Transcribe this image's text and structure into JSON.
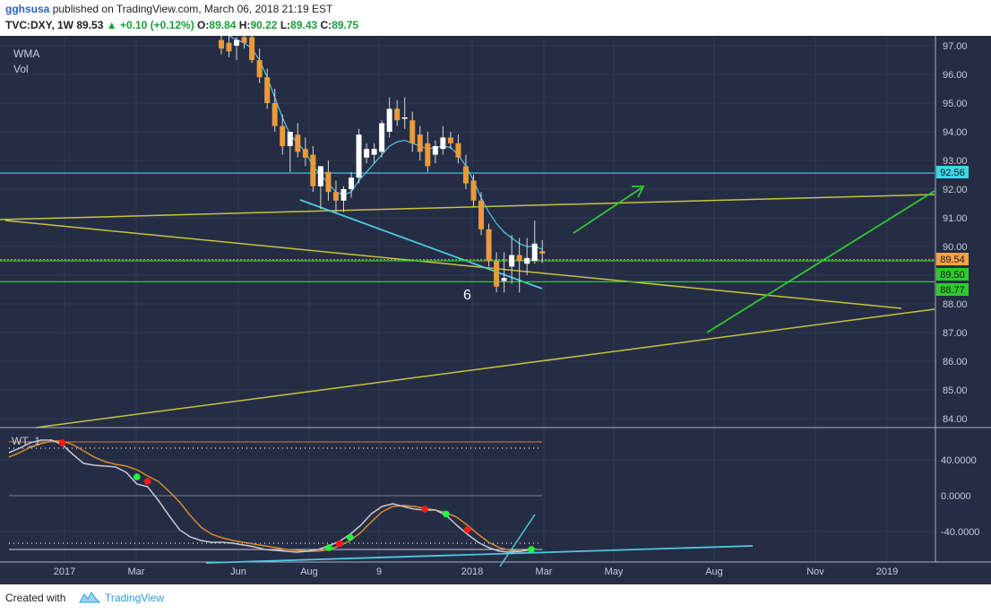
{
  "header": {
    "author": "gghsusa",
    "published": "published on TradingView.com, March 06, 2018 21:19 EST",
    "symbol": "TVC:DXY, 1W",
    "last": "89.53",
    "change": "+0.10 (+0.12%)",
    "open_label": "O:",
    "open": "89.84",
    "high_label": "H:",
    "high": "90.22",
    "low_label": "L:",
    "low": "89.43",
    "close_label": "C:",
    "close": "89.75"
  },
  "footer": {
    "created_with": "Created with",
    "brand": "TradingView"
  },
  "colors": {
    "background": "#252d45",
    "bull": "#ffffff",
    "bear": "#e99a3a",
    "wma": "#4ec9e0",
    "yellow_line": "#c8c23a",
    "green_line": "#2ec92e",
    "cyan_level": "#3ad8e8",
    "wt1": "#c8c8d2",
    "wt2": "#d78a2a"
  },
  "chart_data": [
    {
      "type": "candlestick",
      "symbol": "TVC:DXY",
      "interval": "1W",
      "legend": [
        "WMA",
        "Vol"
      ],
      "ylim": [
        83.6,
        97.3
      ],
      "y_ticks": [
        "97.00",
        "96.00",
        "95.00",
        "94.00",
        "93.00",
        "92.00",
        "91.00",
        "90.00",
        "89.00",
        "88.00",
        "87.00",
        "86.00",
        "85.00",
        "84.00"
      ],
      "x_ticks": [
        "2017",
        "Mar",
        "Jun",
        "Aug",
        "9",
        "2018",
        "Mar",
        "May",
        "Aug",
        "Nov",
        "2019"
      ],
      "candles": [
        {
          "o": 97.2,
          "h": 97.6,
          "l": 96.7,
          "c": 96.9
        },
        {
          "o": 97.1,
          "h": 97.5,
          "l": 96.6,
          "c": 96.8
        },
        {
          "o": 97.0,
          "h": 97.3,
          "l": 96.5,
          "c": 97.2
        },
        {
          "o": 97.3,
          "h": 97.7,
          "l": 96.9,
          "c": 97.1
        },
        {
          "o": 97.3,
          "h": 97.5,
          "l": 96.4,
          "c": 96.5
        },
        {
          "o": 96.5,
          "h": 96.9,
          "l": 95.7,
          "c": 95.9
        },
        {
          "o": 95.9,
          "h": 96.2,
          "l": 94.8,
          "c": 95.0
        },
        {
          "o": 95.0,
          "h": 95.5,
          "l": 94.0,
          "c": 94.2
        },
        {
          "o": 94.2,
          "h": 94.6,
          "l": 93.2,
          "c": 93.5
        },
        {
          "o": 93.5,
          "h": 93.9,
          "l": 92.6,
          "c": 94.0
        },
        {
          "o": 93.9,
          "h": 94.3,
          "l": 93.1,
          "c": 93.3
        },
        {
          "o": 93.4,
          "h": 93.8,
          "l": 92.8,
          "c": 93.1
        },
        {
          "o": 93.2,
          "h": 93.5,
          "l": 91.9,
          "c": 92.1
        },
        {
          "o": 92.1,
          "h": 92.8,
          "l": 91.3,
          "c": 92.8
        },
        {
          "o": 92.6,
          "h": 93.0,
          "l": 91.6,
          "c": 91.9
        },
        {
          "o": 91.9,
          "h": 92.3,
          "l": 91.2,
          "c": 91.6
        },
        {
          "o": 91.6,
          "h": 92.1,
          "l": 91.2,
          "c": 92.0
        },
        {
          "o": 92.0,
          "h": 92.6,
          "l": 91.7,
          "c": 92.4
        },
        {
          "o": 92.4,
          "h": 94.1,
          "l": 92.2,
          "c": 93.9
        },
        {
          "o": 93.1,
          "h": 93.6,
          "l": 92.9,
          "c": 93.4
        },
        {
          "o": 93.2,
          "h": 93.6,
          "l": 92.9,
          "c": 93.4
        },
        {
          "o": 93.3,
          "h": 94.4,
          "l": 93.1,
          "c": 94.3
        },
        {
          "o": 94.0,
          "h": 95.2,
          "l": 93.8,
          "c": 94.8
        },
        {
          "o": 94.8,
          "h": 95.1,
          "l": 94.2,
          "c": 94.4
        },
        {
          "o": 94.5,
          "h": 95.2,
          "l": 94.1,
          "c": 94.5
        },
        {
          "o": 94.4,
          "h": 94.7,
          "l": 93.3,
          "c": 93.6
        },
        {
          "o": 93.9,
          "h": 94.2,
          "l": 93.0,
          "c": 93.3
        },
        {
          "o": 93.6,
          "h": 94.0,
          "l": 92.6,
          "c": 92.8
        },
        {
          "o": 93.2,
          "h": 93.7,
          "l": 92.9,
          "c": 93.5
        },
        {
          "o": 93.4,
          "h": 94.2,
          "l": 93.2,
          "c": 93.8
        },
        {
          "o": 93.8,
          "h": 94.0,
          "l": 93.4,
          "c": 93.6
        },
        {
          "o": 93.6,
          "h": 93.9,
          "l": 92.9,
          "c": 93.1
        },
        {
          "o": 92.8,
          "h": 93.2,
          "l": 92.0,
          "c": 92.2
        },
        {
          "o": 92.3,
          "h": 92.5,
          "l": 91.4,
          "c": 91.6
        },
        {
          "o": 91.6,
          "h": 91.9,
          "l": 90.4,
          "c": 90.6
        },
        {
          "o": 90.6,
          "h": 90.8,
          "l": 89.3,
          "c": 89.5
        },
        {
          "o": 89.5,
          "h": 89.8,
          "l": 88.4,
          "c": 88.6
        },
        {
          "o": 88.8,
          "h": 89.8,
          "l": 88.4,
          "c": 88.9
        },
        {
          "o": 89.3,
          "h": 90.4,
          "l": 88.7,
          "c": 89.7
        },
        {
          "o": 89.7,
          "h": 90.3,
          "l": 88.4,
          "c": 89.5
        },
        {
          "o": 89.4,
          "h": 90.3,
          "l": 89.0,
          "c": 89.6
        },
        {
          "o": 89.5,
          "h": 90.9,
          "l": 89.4,
          "c": 90.1
        },
        {
          "o": 89.84,
          "h": 90.22,
          "l": 89.43,
          "c": 89.75
        }
      ],
      "wma": [
        97.5,
        97.35,
        97.2,
        97.1,
        96.9,
        96.5,
        95.9,
        95.2,
        94.5,
        93.9,
        93.6,
        93.3,
        92.8,
        92.5,
        92.2,
        91.9,
        91.8,
        91.9,
        92.3,
        92.6,
        92.9,
        93.2,
        93.5,
        93.65,
        93.7,
        93.6,
        93.5,
        93.4,
        93.45,
        93.5,
        93.45,
        93.2,
        92.8,
        92.3,
        91.7,
        91.2,
        90.8,
        90.5,
        90.3,
        90.1,
        90.0,
        90.0,
        89.9
      ],
      "levels": [
        {
          "label": "92.56",
          "value": 92.56,
          "style": "cyan"
        },
        {
          "label": "89.54",
          "value": 89.54,
          "style": "orange"
        },
        {
          "label": "89.50",
          "value": 89.5,
          "style": "green"
        },
        {
          "label": "88.77",
          "value": 88.77,
          "style": "green"
        }
      ],
      "annotation": "6"
    },
    {
      "type": "line",
      "indicator": "WT_1",
      "legend": [
        "WT_1"
      ],
      "ylim": [
        -78,
        78
      ],
      "y_ticks": [
        "40.0000",
        "0.0000",
        "-40.0000"
      ],
      "reference_lines": [
        60,
        53,
        0,
        -53,
        -60
      ],
      "wt1": [
        48,
        53,
        59,
        62,
        62,
        57,
        46,
        36,
        34,
        33,
        32,
        26,
        13,
        10,
        -5,
        -22,
        -38,
        -46,
        -50,
        -52,
        -52,
        -53,
        -55,
        -57,
        -60,
        -61,
        -62,
        -63,
        -62,
        -60,
        -56,
        -51,
        -43,
        -33,
        -20,
        -12,
        -9,
        -12,
        -15,
        -16,
        -16,
        -22,
        -33,
        -43,
        -52,
        -58,
        -62,
        -63,
        -62,
        -59
      ],
      "wt2": [
        43,
        48,
        54,
        58,
        61,
        61,
        57,
        50,
        43,
        38,
        35,
        33,
        29,
        22,
        16,
        5,
        -7,
        -22,
        -35,
        -43,
        -47,
        -50,
        -52,
        -54,
        -56,
        -58,
        -60,
        -61,
        -62,
        -62,
        -60,
        -56,
        -50,
        -41,
        -29,
        -18,
        -12,
        -11,
        -12,
        -14,
        -16,
        -19,
        -24,
        -33,
        -43,
        -52,
        -58,
        -61,
        -62,
        -61
      ]
    }
  ]
}
